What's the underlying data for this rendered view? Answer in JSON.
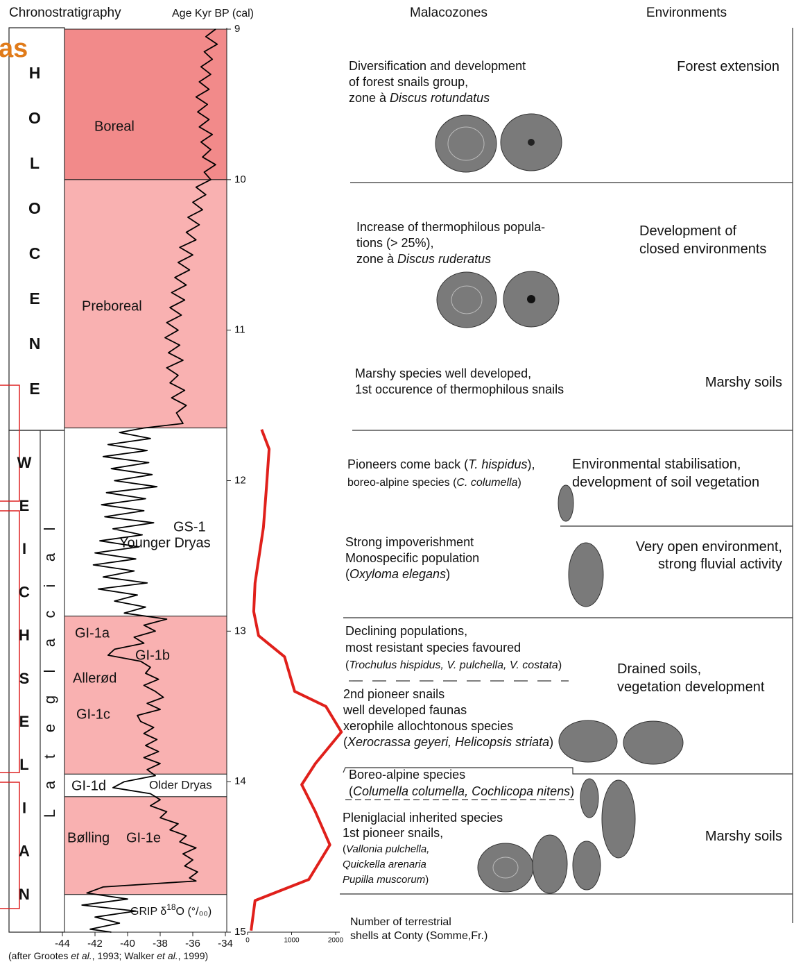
{
  "header": {
    "chronostratigraphy": "Chronostratigraphy",
    "age": "Age Kyr BP (cal)",
    "malacozones": "Malacozones",
    "environments": "Environments"
  },
  "overlay_text": "as",
  "holocene_letters": [
    "H",
    "O",
    "L",
    "O",
    "C",
    "E",
    "N",
    "E"
  ],
  "weichselian_letters": [
    "W",
    "E",
    "I",
    "C",
    "H",
    "S",
    "E",
    "L",
    "I",
    "A",
    "N"
  ],
  "lateglacial_letters": [
    "L",
    "a",
    "t",
    "e",
    "g",
    "l",
    "a",
    "c",
    "i",
    "a",
    "l"
  ],
  "bands": [
    {
      "from": 9,
      "to": 10,
      "color": "#f28a8a"
    },
    {
      "from": 10,
      "to": 11.65,
      "color": "#f9b1b1"
    },
    {
      "from": 11.65,
      "to": 12.9,
      "color": "#ffffff"
    },
    {
      "from": 12.9,
      "to": 13.95,
      "color": "#f9b1b1"
    },
    {
      "from": 13.95,
      "to": 14.1,
      "color": "#ffffff"
    },
    {
      "from": 14.1,
      "to": 14.75,
      "color": "#f9b1b1"
    },
    {
      "from": 14.75,
      "to": 15,
      "color": "#ffffff"
    }
  ],
  "band_labels": [
    "Boreal",
    "Preboreal",
    "GS-1",
    "Younger Dryas",
    "GI-1a",
    "GI-1b",
    "Allerød",
    "GI-1c",
    "GI-1d",
    "Older Dryas",
    "Bølling",
    "GI-1e"
  ],
  "chart_data": [
    {
      "type": "line",
      "label_parts": [
        "GRIP δ",
        "18",
        "O (°/₀₀)"
      ],
      "xlim": [
        -44,
        -34
      ],
      "xticks": [
        -44,
        -42,
        -40,
        -38,
        -36,
        -34
      ],
      "ylim": [
        9,
        15
      ],
      "yticks": [
        9,
        10,
        11,
        12,
        13,
        14,
        15
      ],
      "series": [
        {
          "color": "#000000",
          "age": [
            9.0,
            9.05,
            9.1,
            9.15,
            9.2,
            9.25,
            9.3,
            9.35,
            9.4,
            9.45,
            9.5,
            9.55,
            9.6,
            9.65,
            9.7,
            9.75,
            9.8,
            9.85,
            9.9,
            9.95,
            10.0,
            10.05,
            10.1,
            10.15,
            10.2,
            10.25,
            10.3,
            10.35,
            10.4,
            10.45,
            10.5,
            10.55,
            10.6,
            10.65,
            10.7,
            10.75,
            10.8,
            10.85,
            10.9,
            10.95,
            11.0,
            11.05,
            11.1,
            11.15,
            11.2,
            11.25,
            11.3,
            11.35,
            11.4,
            11.45,
            11.5,
            11.55,
            11.62,
            11.65,
            11.68,
            11.72,
            11.76,
            11.8,
            11.84,
            11.88,
            11.92,
            11.96,
            12.0,
            12.04,
            12.08,
            12.12,
            12.16,
            12.2,
            12.24,
            12.28,
            12.32,
            12.36,
            12.4,
            12.44,
            12.48,
            12.52,
            12.56,
            12.6,
            12.64,
            12.68,
            12.72,
            12.76,
            12.8,
            12.84,
            12.88,
            12.92,
            12.96,
            13.0,
            13.04,
            13.08,
            13.12,
            13.16,
            13.2,
            13.24,
            13.28,
            13.32,
            13.36,
            13.4,
            13.44,
            13.48,
            13.52,
            13.56,
            13.6,
            13.64,
            13.68,
            13.72,
            13.76,
            13.8,
            13.84,
            13.88,
            13.92,
            13.96,
            14.0,
            14.04,
            14.08,
            14.12,
            14.16,
            14.2,
            14.24,
            14.28,
            14.32,
            14.36,
            14.4,
            14.44,
            14.48,
            14.52,
            14.56,
            14.6,
            14.64,
            14.66,
            14.7,
            14.74,
            14.78,
            14.82,
            14.86,
            14.9,
            14.94,
            14.98,
            15.0
          ],
          "values": [
            -34.6,
            -35.2,
            -34.5,
            -35.3,
            -34.8,
            -35.5,
            -34.9,
            -35.6,
            -35.0,
            -35.8,
            -35.1,
            -35.7,
            -35.0,
            -35.6,
            -34.8,
            -35.5,
            -34.9,
            -35.4,
            -34.6,
            -35.3,
            -34.9,
            -35.8,
            -35.2,
            -36.0,
            -35.4,
            -36.3,
            -35.6,
            -36.4,
            -35.8,
            -36.8,
            -36.0,
            -36.9,
            -36.2,
            -37.1,
            -36.4,
            -37.3,
            -36.5,
            -37.4,
            -36.7,
            -37.6,
            -36.9,
            -37.7,
            -36.8,
            -37.5,
            -36.6,
            -37.6,
            -36.9,
            -37.4,
            -36.5,
            -37.3,
            -36.4,
            -37.0,
            -36.6,
            -39.0,
            -40.5,
            -38.6,
            -41.2,
            -38.8,
            -41.5,
            -38.7,
            -41.0,
            -38.5,
            -40.8,
            -38.2,
            -41.3,
            -38.9,
            -41.6,
            -39.0,
            -41.4,
            -38.4,
            -40.9,
            -39.1,
            -41.7,
            -39.3,
            -42.0,
            -39.5,
            -42.1,
            -39.6,
            -41.5,
            -38.8,
            -41.8,
            -39.4,
            -40.8,
            -38.9,
            -40.2,
            -37.6,
            -39.0,
            -38.3,
            -39.6,
            -39.0,
            -40.8,
            -41.2,
            -39.2,
            -38.6,
            -38.9,
            -38.1,
            -39.0,
            -38.3,
            -37.8,
            -38.8,
            -38.0,
            -39.4,
            -39.2,
            -38.4,
            -39.0,
            -38.2,
            -38.9,
            -38.1,
            -39.0,
            -38.0,
            -38.8,
            -38.3,
            -40.2,
            -40.9,
            -38.6,
            -38.0,
            -38.6,
            -37.6,
            -38.0,
            -36.9,
            -37.4,
            -36.4,
            -36.8,
            -35.8,
            -36.6,
            -36.0,
            -36.5,
            -35.7,
            -36.2,
            -35.8,
            -41.5,
            -42.5,
            -40.0,
            -42.8,
            -39.5,
            -42.0,
            -40.5,
            -42.3,
            -41.0
          ]
        }
      ]
    },
    {
      "type": "line",
      "title_lines": [
        "Number of terrestrial",
        "shells at Conty (Somme,Fr.)"
      ],
      "xlim": [
        0,
        2000
      ],
      "xticks": [
        0,
        1000,
        2000
      ],
      "ylim": [
        9,
        15
      ],
      "series": [
        {
          "color": "#e0201b",
          "age": [
            11.66,
            11.79,
            12.04,
            12.31,
            12.68,
            12.87,
            13.03,
            13.17,
            13.4,
            13.5,
            13.67,
            13.88,
            14.02,
            14.2,
            14.42,
            14.65,
            14.79,
            14.99
          ],
          "values": [
            320,
            490,
            430,
            360,
            170,
            140,
            250,
            840,
            1070,
            1780,
            2130,
            1540,
            1230,
            1540,
            1870,
            1390,
            170,
            80
          ]
        }
      ]
    }
  ],
  "zones": [
    {
      "lines": [
        [
          {
            "t": "Diversification and development"
          }
        ],
        [
          {
            "t": "of forest snails group,"
          }
        ],
        [
          {
            "t": "zone à "
          },
          {
            "t": "Discus rotundatus",
            "i": true
          }
        ]
      ],
      "environment": [
        "Forest extension"
      ]
    },
    {
      "lines": [
        [
          {
            "t": "Increase of thermophilous popula-"
          }
        ],
        [
          {
            "t": "tions (> 25%),"
          }
        ],
        [
          {
            "t": "zone à "
          },
          {
            "t": "Discus ruderatus",
            "i": true
          }
        ]
      ],
      "environment": [
        "Development of",
        "closed environments"
      ]
    },
    {
      "lines": [
        [
          {
            "t": "Marshy species well developed,"
          }
        ],
        [
          {
            "t": "1st occurence of thermophilous snails"
          }
        ]
      ],
      "environment": [
        "Marshy soils"
      ]
    },
    {
      "lines": [
        [
          {
            "t": "Pioneers come back ("
          },
          {
            "t": "T. hispidus",
            "i": true
          },
          {
            "t": "),"
          }
        ],
        [
          {
            "t": "boreo-alpine species ("
          },
          {
            "t": "C. columella",
            "i": true
          },
          {
            "t": ")"
          }
        ]
      ],
      "environment": [
        "Environmental stabilisation,",
        "development of soil vegetation"
      ]
    },
    {
      "lines": [
        [
          {
            "t": "Strong impoverishment"
          }
        ],
        [
          {
            "t": "Monospecific population"
          }
        ],
        [
          {
            "t": "("
          },
          {
            "t": "Oxyloma elegans",
            "i": true
          },
          {
            "t": ")"
          }
        ]
      ],
      "environment": [
        "Very open environment,",
        "strong fluvial activity"
      ]
    },
    {
      "lines": [
        [
          {
            "t": "Declining populations,"
          }
        ],
        [
          {
            "t": "most resistant species favoured"
          }
        ],
        [
          {
            "t": "("
          },
          {
            "t": "Trochulus hispidus, V. pulchella, V. costata",
            "i": true
          },
          {
            "t": ")"
          }
        ]
      ],
      "environment": [
        "Drained soils,",
        "vegetation development"
      ]
    },
    {
      "lines": [
        [
          {
            "t": "2nd pioneer snails"
          }
        ],
        [
          {
            "t": "well developed faunas"
          }
        ],
        [
          {
            "t": "xerophile allochtonous species"
          }
        ],
        [
          {
            "t": "("
          },
          {
            "t": "Xerocrassa geyeri, Helicopsis striata",
            "i": true
          },
          {
            "t": ")"
          }
        ]
      ],
      "environment": []
    },
    {
      "lines": [
        [
          {
            "t": "Boreo-alpine species"
          }
        ],
        [
          {
            "t": "("
          },
          {
            "t": "Columella columella, Cochlicopa nitens",
            "i": true
          },
          {
            "t": ")"
          }
        ]
      ],
      "environment": []
    },
    {
      "lines": [
        [
          {
            "t": "Pleniglacial inherited species"
          }
        ],
        [
          {
            "t": "1st pioneer snails,"
          }
        ],
        [
          {
            "t": "("
          },
          {
            "t": "Vallonia pulchella,",
            "i": true
          }
        ],
        [
          {
            "t": "Quickella arenaria",
            "i": true
          }
        ],
        [
          {
            "t": "Pupilla muscorum",
            "i": true
          },
          {
            "t": ")"
          }
        ]
      ],
      "environment": [
        "Marshy soils"
      ]
    }
  ],
  "caption": [
    {
      "t": "(after Grootes "
    },
    {
      "t": "et al.",
      "i": true
    },
    {
      "t": ", 1993; Walker "
    },
    {
      "t": "et al.",
      "i": true
    },
    {
      "t": ", 1999)"
    }
  ]
}
